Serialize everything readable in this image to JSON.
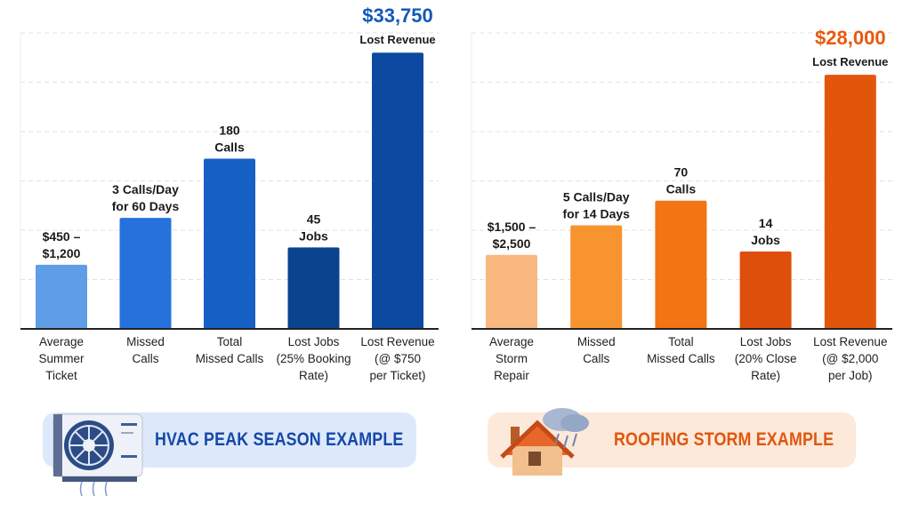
{
  "chart_data": [
    {
      "type": "bar",
      "categories": [
        "Average Summer Ticket",
        "Missed Calls",
        "Total Missed Calls",
        "Lost Jobs (25% Booking Rate)",
        "Lost Revenue (@ $750 per Ticket)"
      ],
      "category_lines": [
        [
          "Average",
          "Summer",
          "Ticket"
        ],
        [
          "Missed",
          "Calls"
        ],
        [
          "Total",
          "Missed Calls"
        ],
        [
          "Lost Jobs",
          "(25% Booking",
          "Rate)"
        ],
        [
          "Lost Revenue",
          "(@ $750",
          "per Ticket)"
        ]
      ],
      "data_labels": [
        [
          "$450 –",
          "$1,200"
        ],
        [
          "3 Calls/Day",
          "for 60 Days"
        ],
        [
          "180",
          "Calls"
        ],
        [
          "45",
          "Jobs"
        ],
        [
          "$33,750",
          "Lost Revenue"
        ]
      ],
      "values": [
        1.3,
        2.25,
        3.45,
        1.65,
        5.6
      ],
      "ylim": [
        0,
        6
      ],
      "grid": true,
      "y_tick_labels": false,
      "colors": [
        "#5f9de9",
        "#2572dc",
        "#1660c6",
        "#0a438e",
        "#0b4aa0"
      ],
      "highlight_color": "#1558b8"
    },
    {
      "type": "bar",
      "categories": [
        "Average Storm Repair",
        "Missed Calls",
        "Total Missed Calls",
        "Lost Jobs (20% Close Rate)",
        "Lost Revenue (@ $2,000 per Job)"
      ],
      "category_lines": [
        [
          "Average",
          "Storm",
          "Repair"
        ],
        [
          "Missed",
          "Calls"
        ],
        [
          "Total",
          "Missed Calls"
        ],
        [
          "Lost Jobs",
          "(20% Close",
          "Rate)"
        ],
        [
          "Lost Revenue",
          "(@ $2,000",
          "per Job)"
        ]
      ],
      "data_labels": [
        [
          "$1,500 –",
          "$2,500"
        ],
        [
          "5 Calls/Day",
          "for 14 Days"
        ],
        [
          "70",
          "Calls"
        ],
        [
          "14",
          "Jobs"
        ],
        [
          "$28,000",
          "Lost Revenue"
        ]
      ],
      "values": [
        1.5,
        2.1,
        2.6,
        1.57,
        5.15
      ],
      "ylim": [
        0,
        6
      ],
      "grid": true,
      "y_tick_labels": false,
      "colors": [
        "#f8b880",
        "#f89430",
        "#f27413",
        "#dd4f0b",
        "#e2560c"
      ],
      "highlight_color": "#e8590c"
    }
  ],
  "banners": {
    "hvac": {
      "label": "HVAC PEAK SEASON EXAMPLE",
      "color": "#1548a8",
      "icon": "air-conditioner-icon"
    },
    "roofing": {
      "label": "ROOFING STORM EXAMPLE",
      "color": "#e0560f",
      "icon": "house-storm-icon"
    }
  }
}
